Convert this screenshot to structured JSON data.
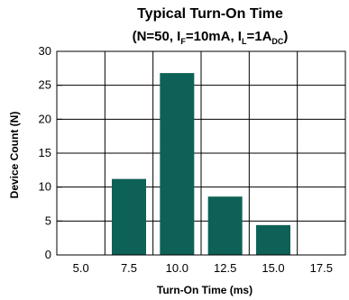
{
  "chart_data": {
    "type": "bar",
    "title_line1": "Typical Turn-On Time",
    "title_line2": {
      "prefix": "(N=50, I",
      "sub1": "F",
      "mid1": "=10mA, I",
      "sub2": "L",
      "mid2": "=1A",
      "sub3": "DC",
      "suffix": ")"
    },
    "xlabel": "Turn-On Time (ms)",
    "ylabel": "Device Count (N)",
    "categories": [
      "5.0",
      "7.5",
      "10.0",
      "12.5",
      "15.0",
      "17.5"
    ],
    "values": [
      0,
      11.2,
      26.8,
      8.6,
      4.4,
      0
    ],
    "ylim": [
      0,
      30
    ],
    "yticks": [
      "0",
      "5",
      "10",
      "15",
      "20",
      "25",
      "30"
    ],
    "grid": true,
    "legend": "none",
    "colors": {
      "bar": "#0e6157",
      "grid": "#000000"
    }
  }
}
